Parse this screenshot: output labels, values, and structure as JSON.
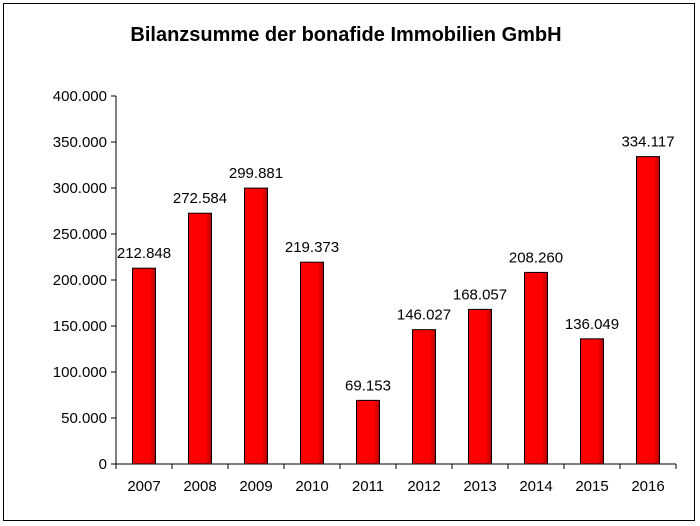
{
  "chart_data": {
    "type": "bar",
    "title": "Bilanzsumme der bonafide Immobilien GmbH",
    "categories": [
      "2007",
      "2008",
      "2009",
      "2010",
      "2011",
      "2012",
      "2013",
      "2014",
      "2015",
      "2016"
    ],
    "values": [
      212848,
      272584,
      299881,
      219373,
      69153,
      146027,
      168057,
      208260,
      136049,
      334117
    ],
    "data_labels": [
      "212.848",
      "272.584",
      "299.881",
      "219.373",
      "69.153",
      "146.027",
      "168.057",
      "208.260",
      "136.049",
      "334.117"
    ],
    "ylim": [
      0,
      400000
    ],
    "yticks": [
      0,
      50000,
      100000,
      150000,
      200000,
      250000,
      300000,
      350000,
      400000
    ],
    "ytick_labels": [
      "0",
      "50.000",
      "100.000",
      "150.000",
      "200.000",
      "250.000",
      "300.000",
      "350.000",
      "400.000"
    ],
    "grid": false,
    "legend": "none",
    "bar_color": "#ff0000",
    "bar_border_color": "#000000"
  }
}
